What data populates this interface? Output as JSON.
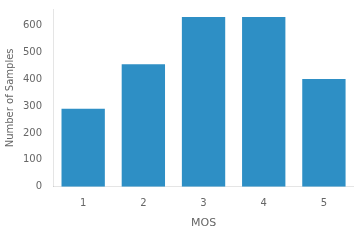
{
  "chart_data": {
    "type": "bar",
    "categories": [
      1,
      2,
      3,
      4,
      5
    ],
    "values": [
      290,
      455,
      630,
      630,
      400
    ],
    "color": "#2e8fc5",
    "xlabel": "MOS",
    "ylabel": "Number of Samples",
    "ylim": [
      0,
      660
    ],
    "yticks": [
      0,
      100,
      200,
      300,
      400,
      500,
      600
    ],
    "grid": false
  }
}
